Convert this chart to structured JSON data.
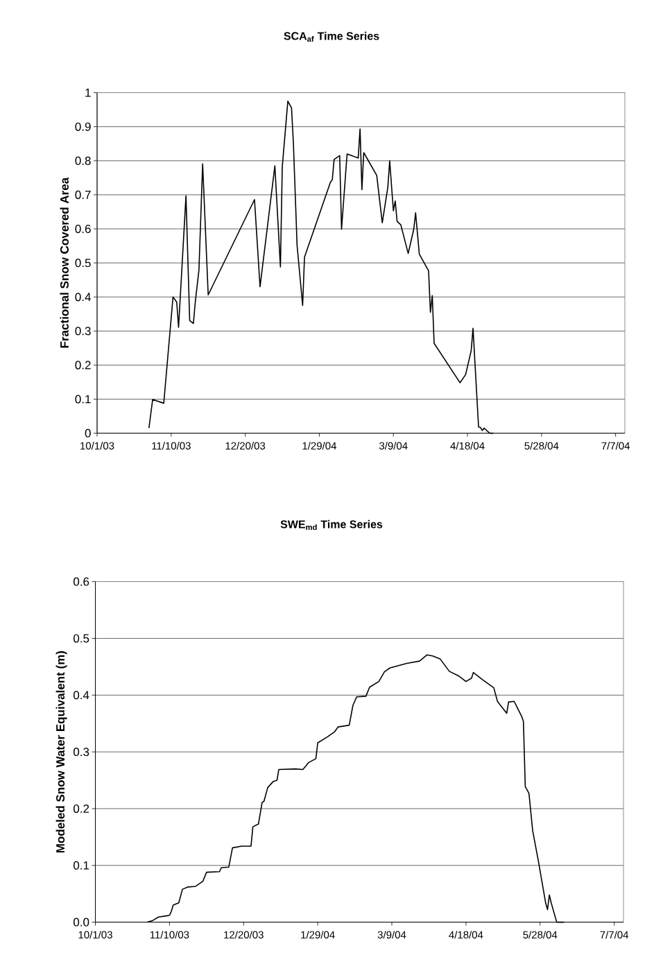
{
  "chart_data": [
    {
      "type": "line",
      "title": "SCA$_{af}$ Time Series",
      "ylabel": "Fractional Snow Covered Area",
      "grid": "y",
      "xlim": [
        "2003-10-01",
        "2004-07-12"
      ],
      "xticks": [
        {
          "value": "2003-10-01",
          "label": "10/1/03"
        },
        {
          "value": "2003-11-10",
          "label": "11/10/03"
        },
        {
          "value": "2003-12-20",
          "label": "12/20/03"
        },
        {
          "value": "2004-01-29",
          "label": "1/29/04"
        },
        {
          "value": "2004-03-09",
          "label": "3/9/04"
        },
        {
          "value": "2004-04-18",
          "label": "4/18/04"
        },
        {
          "value": "2004-05-28",
          "label": "5/28/04"
        },
        {
          "value": "2004-07-07",
          "label": "7/7/04"
        }
      ],
      "ylim": [
        0,
        1
      ],
      "yticks": [
        0,
        0.1,
        0.2,
        0.3,
        0.4,
        0.5,
        0.6,
        0.7,
        0.8,
        0.9,
        1
      ],
      "series": [
        {
          "color": "#000000",
          "x": [
            "2003-10-29",
            "2003-10-31",
            "2003-11-06",
            "2003-11-11",
            "2003-11-13",
            "2003-11-14",
            "2003-11-18",
            "2003-11-20",
            "2003-11-22",
            "2003-11-23",
            "2003-11-25",
            "2003-11-27",
            "2003-11-30",
            "2003-12-25",
            "2003-12-28",
            "2004-01-05",
            "2004-01-08",
            "2004-01-09",
            "2004-01-12",
            "2004-01-14",
            "2004-01-15",
            "2004-01-17",
            "2004-01-20",
            "2004-01-21",
            "2004-02-04",
            "2004-02-05",
            "2004-02-06",
            "2004-02-09",
            "2004-02-10",
            "2004-02-13",
            "2004-02-19",
            "2004-02-20",
            "2004-02-21",
            "2004-02-22",
            "2004-02-29",
            "2004-03-03",
            "2004-03-06",
            "2004-03-07",
            "2004-03-09",
            "2004-03-10",
            "2004-03-11",
            "2004-03-13",
            "2004-03-17",
            "2004-03-20",
            "2004-03-21",
            "2004-03-23",
            "2004-03-28",
            "2004-03-29",
            "2004-03-30",
            "2004-03-31",
            "2004-04-14",
            "2004-04-17",
            "2004-04-20",
            "2004-04-21",
            "2004-04-24",
            "2004-04-25",
            "2004-04-26",
            "2004-04-27",
            "2004-04-30",
            "2004-05-02"
          ],
          "values": [
            0.015,
            0.099,
            0.088,
            0.4,
            0.385,
            0.311,
            0.697,
            0.331,
            0.322,
            0.384,
            0.479,
            0.791,
            0.406,
            0.686,
            0.43,
            0.785,
            0.488,
            0.782,
            0.975,
            0.955,
            0.853,
            0.551,
            0.375,
            0.517,
            0.737,
            0.744,
            0.804,
            0.815,
            0.599,
            0.82,
            0.808,
            0.893,
            0.715,
            0.824,
            0.757,
            0.618,
            0.722,
            0.8,
            0.653,
            0.682,
            0.622,
            0.612,
            0.528,
            0.599,
            0.647,
            0.526,
            0.477,
            0.355,
            0.404,
            0.264,
            0.148,
            0.172,
            0.242,
            0.308,
            0.018,
            0.017,
            0.008,
            0.015,
            0,
            0
          ]
        }
      ]
    },
    {
      "type": "line",
      "title": "SWE$_{md}$ Time Series",
      "ylabel": "Modeled Snow Water Equivalent (m)",
      "grid": "y",
      "xlim": [
        "2003-10-01",
        "2004-07-12"
      ],
      "xticks": [
        {
          "value": "2003-10-01",
          "label": "10/1/03"
        },
        {
          "value": "2003-11-10",
          "label": "11/10/03"
        },
        {
          "value": "2003-12-20",
          "label": "12/20/03"
        },
        {
          "value": "2004-01-29",
          "label": "1/29/04"
        },
        {
          "value": "2004-03-09",
          "label": "3/9/04"
        },
        {
          "value": "2004-04-18",
          "label": "4/18/04"
        },
        {
          "value": "2004-05-28",
          "label": "5/28/04"
        },
        {
          "value": "2004-07-07",
          "label": "7/7/04"
        }
      ],
      "ylim": [
        0,
        0.6
      ],
      "yticks": [
        {
          "value": 0,
          "label": "0.0"
        },
        {
          "value": 0.1,
          "label": "0.1"
        },
        {
          "value": 0.2,
          "label": "0.2"
        },
        {
          "value": 0.3,
          "label": "0.3"
        },
        {
          "value": 0.4,
          "label": "0.4"
        },
        {
          "value": 0.5,
          "label": "0.5"
        },
        {
          "value": 0.6,
          "label": "0.6"
        }
      ],
      "series": [
        {
          "color": "#000000",
          "x": [
            "2003-10-29",
            "2003-11-01",
            "2003-11-04",
            "2003-11-08",
            "2003-11-10",
            "2003-11-11",
            "2003-11-12",
            "2003-11-15",
            "2003-11-17",
            "2003-11-20",
            "2003-11-24",
            "2003-11-28",
            "2003-11-30",
            "2003-12-07",
            "2003-12-08",
            "2003-12-12",
            "2003-12-14",
            "2003-12-19",
            "2003-12-24",
            "2003-12-25",
            "2003-12-28",
            "2003-12-30",
            "2003-12-31",
            "2004-01-02",
            "2004-01-05",
            "2004-01-07",
            "2004-01-08",
            "2004-01-17",
            "2004-01-21",
            "2004-01-24",
            "2004-01-28",
            "2004-01-29",
            "2004-02-03",
            "2004-02-07",
            "2004-02-09",
            "2004-02-15",
            "2004-02-17",
            "2004-02-19",
            "2004-02-24",
            "2004-02-26",
            "2004-03-02",
            "2004-03-05",
            "2004-03-08",
            "2004-03-17",
            "2004-03-24",
            "2004-03-28",
            "2004-03-31",
            "2004-04-04",
            "2004-04-09",
            "2004-04-14",
            "2004-04-18",
            "2004-04-21",
            "2004-04-22",
            "2004-04-27",
            "2004-05-03",
            "2004-05-05",
            "2004-05-10",
            "2004-05-11",
            "2004-05-14",
            "2004-05-18",
            "2004-05-19",
            "2004-05-20",
            "2004-05-22",
            "2004-05-24",
            "2004-05-27",
            "2004-05-31",
            "2004-06-01",
            "2004-06-02",
            "2004-06-03",
            "2004-06-05",
            "2004-06-06",
            "2004-06-10"
          ],
          "values": [
            0,
            0.003,
            0.009,
            0.011,
            0.012,
            0.019,
            0.03,
            0.034,
            0.058,
            0.062,
            0.063,
            0.072,
            0.088,
            0.089,
            0.096,
            0.097,
            0.131,
            0.134,
            0.134,
            0.168,
            0.173,
            0.211,
            0.213,
            0.237,
            0.248,
            0.25,
            0.269,
            0.27,
            0.269,
            0.281,
            0.288,
            0.316,
            0.326,
            0.335,
            0.344,
            0.347,
            0.382,
            0.397,
            0.398,
            0.414,
            0.424,
            0.441,
            0.448,
            0.456,
            0.46,
            0.471,
            0.469,
            0.464,
            0.442,
            0.434,
            0.424,
            0.43,
            0.44,
            0.427,
            0.413,
            0.389,
            0.368,
            0.388,
            0.389,
            0.363,
            0.354,
            0.239,
            0.227,
            0.161,
            0.109,
            0.034,
            0.022,
            0.048,
            0.034,
            0.011,
            0,
            0
          ]
        }
      ]
    }
  ]
}
